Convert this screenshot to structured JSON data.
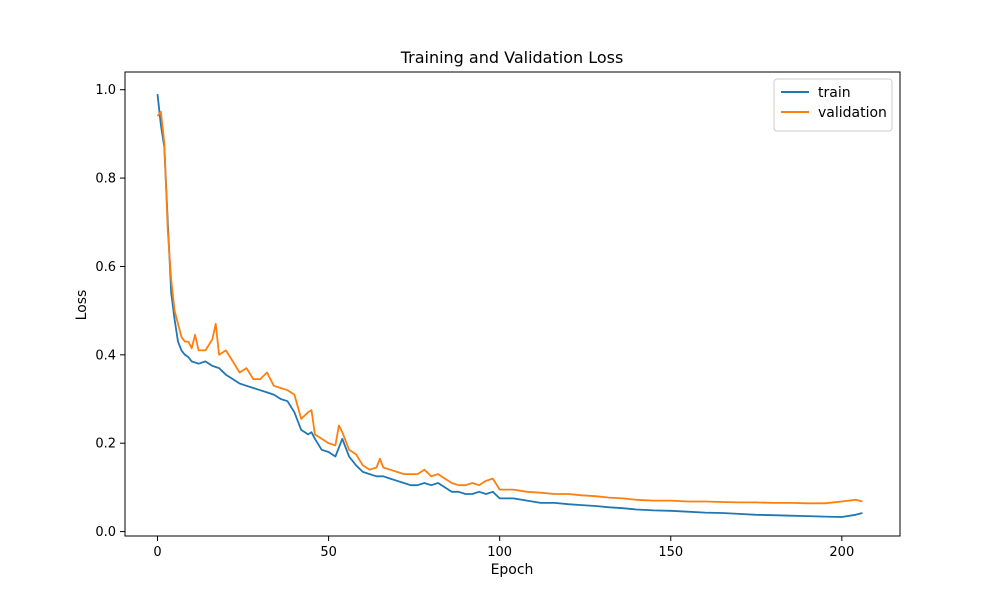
{
  "chart_data": {
    "type": "line",
    "title": "Training and Validation Loss",
    "xlabel": "Epoch",
    "ylabel": "Loss",
    "xlim": [
      -9.5,
      217
    ],
    "ylim": [
      -0.01,
      1.04
    ],
    "xticks": [
      0,
      50,
      100,
      150,
      200
    ],
    "yticks": [
      0.0,
      0.2,
      0.4,
      0.6,
      0.8,
      1.0
    ],
    "xtick_labels": [
      "0",
      "50",
      "100",
      "150",
      "200"
    ],
    "ytick_labels": [
      "0.0",
      "0.2",
      "0.4",
      "0.6",
      "0.8",
      "1.0"
    ],
    "grid": false,
    "legend_position": "top-right",
    "series": [
      {
        "name": "train",
        "color": "#1f77b4",
        "x": [
          0,
          1,
          2,
          3,
          4,
          5,
          6,
          7,
          8,
          9,
          10,
          12,
          14,
          16,
          18,
          20,
          22,
          24,
          26,
          28,
          30,
          32,
          34,
          36,
          38,
          40,
          42,
          44,
          45,
          46,
          48,
          50,
          52,
          54,
          56,
          58,
          60,
          62,
          64,
          66,
          68,
          70,
          72,
          74,
          76,
          78,
          80,
          82,
          84,
          86,
          88,
          90,
          92,
          94,
          96,
          98,
          100,
          104,
          108,
          112,
          116,
          120,
          124,
          128,
          132,
          136,
          140,
          145,
          150,
          155,
          160,
          165,
          170,
          175,
          180,
          185,
          190,
          195,
          200,
          204,
          206
        ],
        "y": [
          0.99,
          0.92,
          0.87,
          0.7,
          0.54,
          0.48,
          0.43,
          0.41,
          0.4,
          0.395,
          0.385,
          0.38,
          0.385,
          0.375,
          0.37,
          0.355,
          0.345,
          0.335,
          0.33,
          0.325,
          0.32,
          0.315,
          0.31,
          0.3,
          0.295,
          0.27,
          0.23,
          0.22,
          0.225,
          0.21,
          0.185,
          0.18,
          0.17,
          0.21,
          0.17,
          0.15,
          0.135,
          0.13,
          0.125,
          0.125,
          0.12,
          0.115,
          0.11,
          0.105,
          0.105,
          0.11,
          0.105,
          0.11,
          0.1,
          0.09,
          0.09,
          0.085,
          0.085,
          0.09,
          0.085,
          0.09,
          0.075,
          0.075,
          0.07,
          0.065,
          0.065,
          0.062,
          0.06,
          0.058,
          0.055,
          0.053,
          0.05,
          0.048,
          0.047,
          0.045,
          0.043,
          0.042,
          0.04,
          0.038,
          0.037,
          0.036,
          0.035,
          0.034,
          0.033,
          0.038,
          0.042
        ]
      },
      {
        "name": "validation",
        "color": "#ff7f0e",
        "x": [
          0,
          1,
          2,
          3,
          4,
          5,
          6,
          7,
          8,
          9,
          10,
          11,
          12,
          14,
          16,
          17,
          18,
          20,
          22,
          24,
          26,
          28,
          30,
          32,
          34,
          36,
          38,
          40,
          42,
          44,
          45,
          46,
          48,
          50,
          52,
          53,
          54,
          56,
          58,
          60,
          62,
          64,
          65,
          66,
          68,
          70,
          72,
          74,
          76,
          78,
          80,
          82,
          84,
          86,
          88,
          90,
          92,
          94,
          96,
          98,
          100,
          104,
          108,
          112,
          116,
          120,
          124,
          128,
          132,
          136,
          140,
          145,
          150,
          155,
          160,
          165,
          170,
          175,
          180,
          185,
          190,
          195,
          200,
          204,
          206
        ],
        "y": [
          0.94,
          0.95,
          0.88,
          0.68,
          0.57,
          0.5,
          0.47,
          0.44,
          0.43,
          0.43,
          0.415,
          0.445,
          0.41,
          0.41,
          0.435,
          0.47,
          0.4,
          0.41,
          0.385,
          0.36,
          0.37,
          0.345,
          0.345,
          0.36,
          0.33,
          0.325,
          0.32,
          0.31,
          0.255,
          0.27,
          0.275,
          0.22,
          0.21,
          0.2,
          0.195,
          0.24,
          0.225,
          0.185,
          0.175,
          0.15,
          0.14,
          0.145,
          0.165,
          0.145,
          0.14,
          0.135,
          0.13,
          0.13,
          0.13,
          0.14,
          0.125,
          0.13,
          0.12,
          0.11,
          0.105,
          0.105,
          0.11,
          0.105,
          0.115,
          0.12,
          0.095,
          0.095,
          0.09,
          0.088,
          0.085,
          0.085,
          0.082,
          0.08,
          0.077,
          0.075,
          0.072,
          0.07,
          0.07,
          0.068,
          0.068,
          0.067,
          0.066,
          0.066,
          0.065,
          0.065,
          0.064,
          0.064,
          0.068,
          0.072,
          0.068
        ]
      }
    ]
  }
}
